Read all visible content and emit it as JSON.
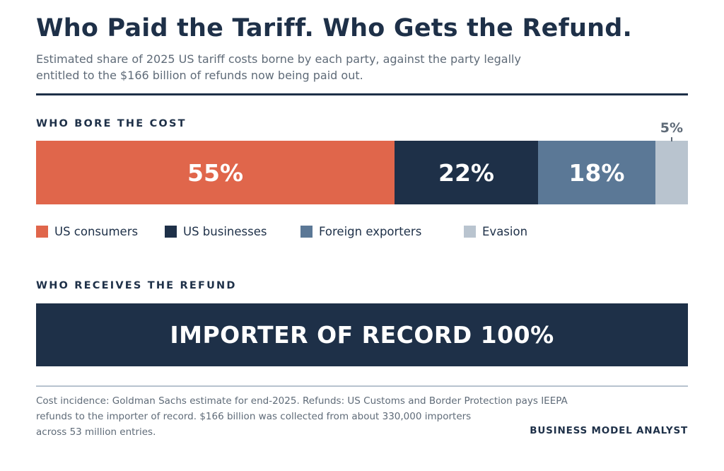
{
  "title": "Who Paid the Tariff. Who Gets the Refund.",
  "subtitle_lines": [
    "Estimated share of 2025 US tariff costs borne by each party, against the party legally",
    "entitled to the $166 billion of refunds now being paid out."
  ],
  "sections": {
    "cost": "WHO BORE THE COST",
    "refund": "WHO RECEIVES THE REFUND"
  },
  "chart_data": [
    {
      "type": "bar",
      "orientation": "horizontal-stacked",
      "title": "WHO BORE THE COST",
      "categories": [
        "US consumers",
        "US businesses",
        "Foreign exporters",
        "Evasion"
      ],
      "values": [
        55,
        22,
        18,
        5
      ],
      "data_labels": [
        "55%",
        "22%",
        "18%",
        "5%"
      ],
      "colors": [
        "#e0664b",
        "#1e3048",
        "#5b7896",
        "#b9c4cf"
      ],
      "unit": "%",
      "total": 100,
      "legend_position": "bottom"
    },
    {
      "type": "bar",
      "orientation": "horizontal-stacked",
      "title": "WHO RECEIVES THE REFUND",
      "categories": [
        "IMPORTER OF RECORD"
      ],
      "values": [
        100
      ],
      "data_labels": [
        "IMPORTER OF RECORD 100%"
      ],
      "colors": [
        "#1e3048"
      ],
      "unit": "%",
      "total": 100
    }
  ],
  "footnote_lines": [
    "Cost incidence: Goldman Sachs estimate for end-2025. Refunds: US Customs and Border Protection pays IEEPA",
    "refunds to the importer of record. $166 billion was collected from about 330,000 importers",
    "across 53 million entries."
  ],
  "brand": "BUSINESS MODEL ANALYST"
}
